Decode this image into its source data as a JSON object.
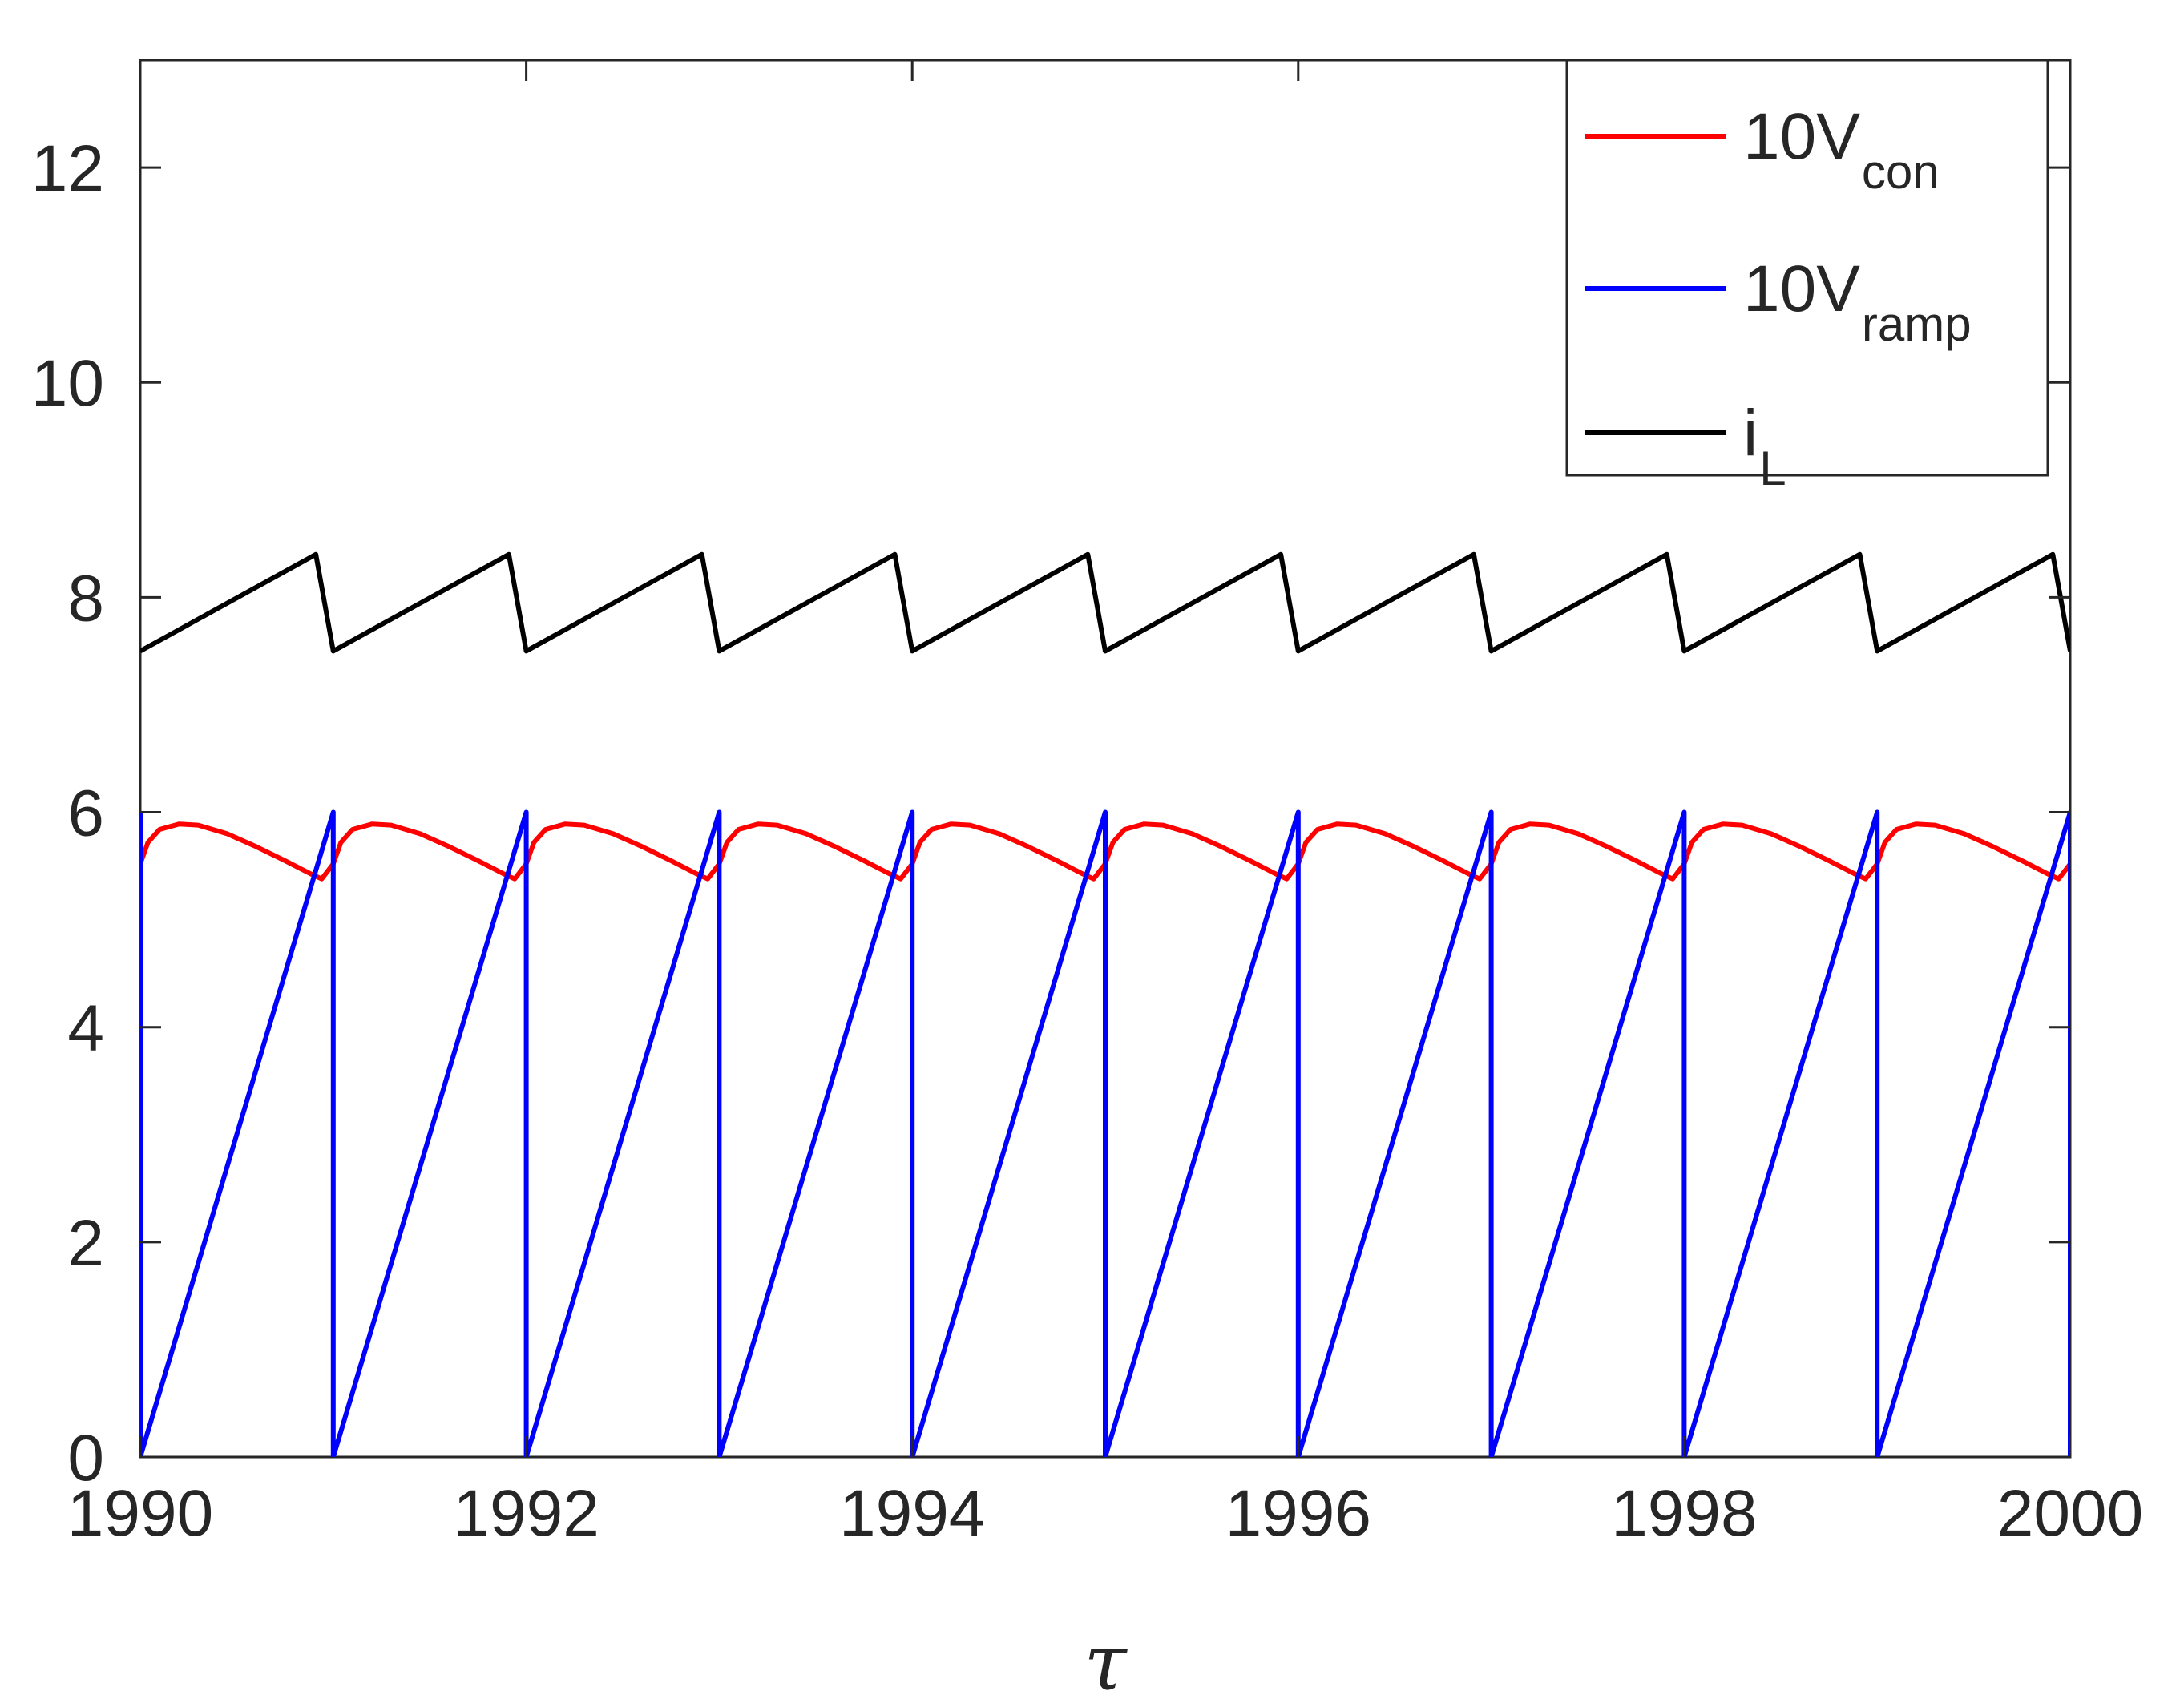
{
  "chart_data": {
    "type": "line",
    "title": "",
    "xlabel": "τ",
    "ylabel": "",
    "xlim": [
      1990,
      2000
    ],
    "ylim": [
      0,
      13
    ],
    "grid": false,
    "x_ticks": [
      1990,
      1992,
      1994,
      1996,
      1998,
      2000
    ],
    "x_tick_labels": [
      "1990",
      "1992",
      "1994",
      "1996",
      "1998",
      "2000"
    ],
    "y_ticks": [
      0,
      2,
      4,
      6,
      8,
      10,
      12
    ],
    "y_tick_labels": [
      "0",
      "2",
      "4",
      "6",
      "8",
      "10",
      "12"
    ],
    "legend_position": "top-right",
    "series": [
      {
        "name": "10V_con",
        "legend_main": "10V",
        "legend_sub": "con",
        "color": "#ff0000",
        "shape": "periodic",
        "period": 1,
        "points_per_period": [
          [
            0,
            5.52
          ],
          [
            0.04,
            5.72
          ],
          [
            0.1,
            5.84
          ],
          [
            0.2,
            5.89
          ],
          [
            0.3,
            5.88
          ],
          [
            0.45,
            5.8
          ],
          [
            0.6,
            5.68
          ],
          [
            0.75,
            5.55
          ],
          [
            0.88,
            5.43
          ],
          [
            0.94,
            5.38
          ],
          [
            1.0,
            5.52
          ]
        ]
      },
      {
        "name": "10V_ramp",
        "legend_main": "10V",
        "legend_sub": "ramp",
        "color": "#0000ff",
        "shape": "sawtooth",
        "period": 1,
        "min": 0,
        "max": 6
      },
      {
        "name": "i_L",
        "legend_main": "i",
        "legend_sub": "L",
        "color": "#000000",
        "shape": "periodic",
        "period": 1,
        "points_per_period": [
          [
            0,
            7.5
          ],
          [
            0.91,
            8.4
          ],
          [
            1.0,
            7.5
          ]
        ]
      }
    ]
  }
}
